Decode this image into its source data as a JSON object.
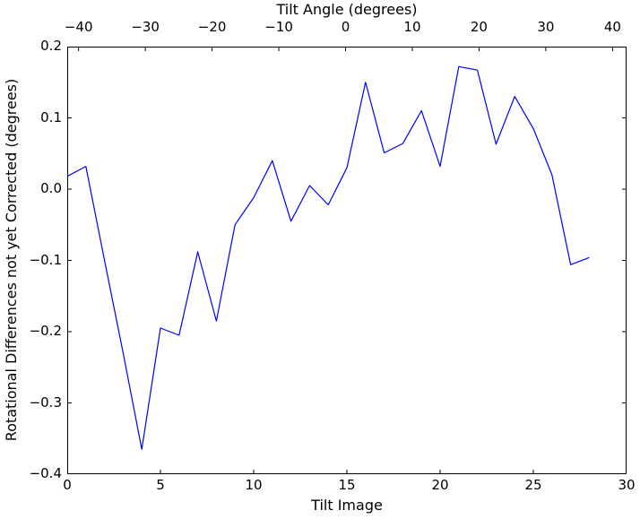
{
  "figure": {
    "background": "#ffffff"
  },
  "chart_data": {
    "type": "line",
    "title": "",
    "grid": false,
    "legend": null,
    "top_axis": {
      "label": "Tilt Angle (degrees)",
      "ticks": [
        -40,
        -30,
        -20,
        -10,
        0,
        10,
        20,
        30,
        40
      ],
      "tick_labels": [
        "−40",
        "−30",
        "−20",
        "−10",
        "0",
        "10",
        "20",
        "30",
        "40"
      ],
      "lim": [
        -41.7,
        42.1
      ]
    },
    "bottom_axis": {
      "label": "Tilt Image",
      "ticks": [
        0,
        5,
        10,
        15,
        20,
        25,
        30
      ],
      "tick_labels": [
        "0",
        "5",
        "10",
        "15",
        "20",
        "25",
        "30"
      ],
      "lim": [
        0,
        30
      ]
    },
    "y_axis": {
      "label": "Rotational Differences not yet Corrected (degrees)",
      "ticks": [
        0.2,
        0.1,
        0.0,
        -0.1,
        -0.2,
        -0.3,
        -0.4
      ],
      "tick_labels": [
        "0.2",
        "0.1",
        "0.0",
        "−0.1",
        "−0.2",
        "−0.3",
        "−0.4"
      ],
      "lim": [
        -0.4,
        0.2
      ]
    },
    "series": [
      {
        "name": "rotational-differences",
        "color": "#0000ff",
        "x": [
          0,
          1,
          2,
          3,
          4,
          5,
          6,
          7,
          8,
          9,
          10,
          11,
          12,
          13,
          14,
          15,
          16,
          17,
          18,
          19,
          20,
          21,
          22,
          23,
          24,
          25,
          26,
          27,
          28
        ],
        "y": [
          0.018,
          0.032,
          -0.1,
          -0.23,
          -0.365,
          -0.195,
          -0.205,
          -0.088,
          -0.185,
          -0.05,
          -0.012,
          0.04,
          -0.045,
          0.005,
          -0.022,
          0.03,
          0.15,
          0.051,
          0.064,
          0.11,
          0.032,
          0.172,
          0.167,
          0.063,
          0.13,
          0.085,
          0.02,
          -0.106,
          -0.096
        ]
      }
    ]
  }
}
